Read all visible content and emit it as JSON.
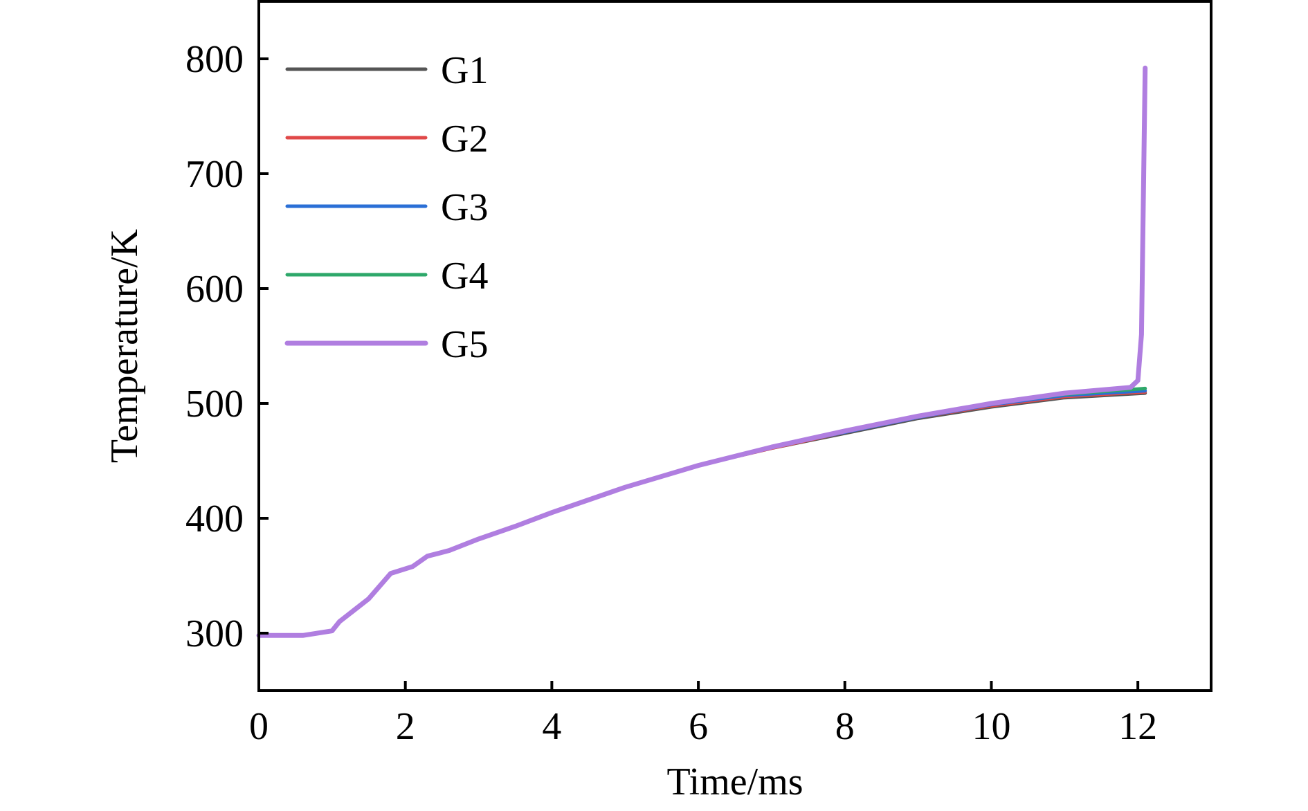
{
  "chart_data": {
    "type": "line",
    "title": "",
    "xlabel": "Time/ms",
    "ylabel": "Temperature/K",
    "xlim": [
      0,
      13
    ],
    "ylim": [
      250,
      850
    ],
    "xticks": [
      0,
      2,
      4,
      6,
      8,
      10,
      12
    ],
    "yticks": [
      300,
      400,
      500,
      600,
      700,
      800
    ],
    "grid": false,
    "legend_position": "top-left",
    "series": [
      {
        "name": "G1",
        "color": "#555555",
        "x": [
          0,
          0.6,
          1,
          1.1,
          1.5,
          1.8,
          2.1,
          2.3,
          2.6,
          3,
          3.5,
          4,
          5,
          6,
          7,
          8,
          9,
          10,
          11,
          12.1
        ],
        "y": [
          298,
          298,
          302,
          310,
          330,
          352,
          358,
          367,
          372,
          382,
          393,
          405,
          427,
          446,
          461,
          474,
          487,
          497,
          505,
          509
        ]
      },
      {
        "name": "G2",
        "color": "#e04848",
        "x": [
          0,
          0.6,
          1,
          1.1,
          1.5,
          1.8,
          2.1,
          2.3,
          2.6,
          3,
          3.5,
          4,
          5,
          6,
          7,
          8,
          9,
          10,
          11,
          12.1
        ],
        "y": [
          298,
          298,
          302,
          310,
          330,
          352,
          358,
          367,
          372,
          382,
          393,
          405,
          427,
          446,
          461,
          475,
          488,
          498,
          506,
          510
        ]
      },
      {
        "name": "G3",
        "color": "#2a6fd6",
        "x": [
          0,
          0.6,
          1,
          1.1,
          1.5,
          1.8,
          2.1,
          2.3,
          2.6,
          3,
          3.5,
          4,
          5,
          6,
          7,
          8,
          9,
          10,
          11,
          12.1
        ],
        "y": [
          298,
          298,
          302,
          310,
          330,
          352,
          358,
          367,
          372,
          382,
          393,
          405,
          427,
          446,
          462,
          475,
          488,
          499,
          507,
          511
        ]
      },
      {
        "name": "G4",
        "color": "#2ea86a",
        "x": [
          0,
          0.6,
          1,
          1.1,
          1.5,
          1.8,
          2.1,
          2.3,
          2.6,
          3,
          3.5,
          4,
          5,
          6,
          7,
          8,
          9,
          10,
          11,
          12.1
        ],
        "y": [
          298,
          298,
          302,
          310,
          330,
          352,
          358,
          367,
          372,
          382,
          393,
          405,
          427,
          446,
          462,
          476,
          489,
          500,
          508,
          513
        ]
      },
      {
        "name": "G5",
        "color": "#b07ee0",
        "x": [
          0,
          0.6,
          1,
          1.1,
          1.5,
          1.8,
          2.1,
          2.3,
          2.6,
          3,
          3.5,
          4,
          5,
          6,
          7,
          8,
          9,
          10,
          11,
          11.9,
          12.0,
          12.05,
          12.08,
          12.1
        ],
        "y": [
          298,
          298,
          302,
          310,
          330,
          352,
          358,
          367,
          372,
          382,
          393,
          405,
          427,
          446,
          462,
          476,
          489,
          500,
          509,
          514,
          520,
          560,
          700,
          792
        ]
      }
    ]
  }
}
